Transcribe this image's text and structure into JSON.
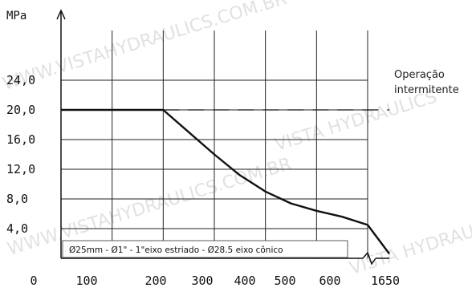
{
  "chart_data": {
    "type": "line",
    "y_unit_label": "MPa",
    "x_ticks": [
      "0",
      "100",
      "200",
      "300",
      "400",
      "500",
      "600",
      "1650"
    ],
    "y_ticks": [
      "4,0",
      "8,0",
      "12,0",
      "16,0",
      "20,0",
      "24,0"
    ],
    "ylim": [
      0,
      26
    ],
    "grid": true,
    "x_axis_break": "between 600 and 1650",
    "series": [
      {
        "style": "solid",
        "points": [
          [
            0,
            20.0
          ],
          [
            200,
            20.0
          ],
          [
            250,
            17.0
          ],
          [
            300,
            14.0
          ],
          [
            350,
            11.2
          ],
          [
            400,
            9.0
          ],
          [
            450,
            7.4
          ],
          [
            500,
            6.4
          ],
          [
            550,
            5.6
          ],
          [
            600,
            4.5
          ],
          [
            1650,
            0.6
          ]
        ]
      },
      {
        "style": "dashed",
        "points": [
          [
            200,
            20.0
          ],
          [
            1650,
            20.0
          ]
        ]
      }
    ],
    "annotation_intermittent": [
      "Operação",
      "intermitente"
    ],
    "caption": "Ø25mm - Ø1\" - 1\"eixo estriado - Ø28.5 eixo cônico"
  },
  "colors": {
    "line": "#111111",
    "grid": "#222222",
    "watermark": "#c9c9c9"
  },
  "watermark": {
    "text_a": "WWW.VISTAHYDRAULICS.COM.BR",
    "text_b": "VISTA HYDRAULICS"
  }
}
